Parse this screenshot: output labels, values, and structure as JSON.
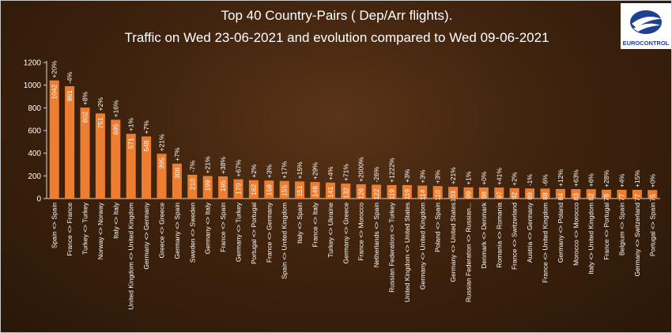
{
  "title_line1": "Top 40 Country-Pairs ( Dep/Arr flights).",
  "title_line2": "Traffic on Wed 23-06-2021 and evolution compared to Wed 09-06-2021",
  "logo": {
    "text": "EUROCONTROL",
    "icon": "eurocontrol-logo-icon"
  },
  "colors": {
    "bar": "#ed7d31",
    "text": "#ffffff",
    "axis": "#d9d9d9"
  },
  "chart_data": {
    "type": "bar",
    "ylim": [
      0,
      1200
    ],
    "yticks": [
      0,
      200,
      400,
      600,
      800,
      1000,
      1200
    ],
    "grid": false,
    "categories": [
      "Spain <> Spain",
      "France <> France",
      "Turkey <> Turkey",
      "Norway <> Norway",
      "Italy <> Italy",
      "United Kingdom <> United Kingdom",
      "Germany <> Germany",
      "Greece <> Greece",
      "Germany <> Spain",
      "Sweden <> Sweden",
      "Germany <> Italy",
      "France <> Spain",
      "Germany <> Turkey",
      "Portugal <> Portugal",
      "France <> Germany",
      "Spain <> United Kingdom",
      "Italy <> Spain",
      "France <> Italy",
      "Turkey <> Ukraine",
      "Germany <> Greece",
      "France <> Morocco",
      "Netherlands <> Spain",
      "Russian Federation <> Turkey",
      "United Kingdom <> United States",
      "Germany <> United Kingdom",
      "Poland <> Spain",
      "Germany <> United States",
      "Russian Federation <> Russian...",
      "Denmark <> Denmark",
      "Romania <> Romania",
      "France <> Switzerland",
      "Austria <> Germany",
      "France <> United Kingdom",
      "Germany <> Poland",
      "Morocco <> Morocco",
      "Italy <> United Kingdom",
      "France <> Portugal",
      "Belgium <> Spain",
      "Germany <> Switzerland",
      "Portugal <> Spain"
    ],
    "values": [
      1042,
      991,
      802,
      751,
      695,
      571,
      548,
      395,
      308,
      210,
      199,
      195,
      170,
      162,
      159,
      155,
      151,
      146,
      141,
      132,
      126,
      122,
      119,
      119,
      114,
      110,
      103,
      99,
      98,
      97,
      92,
      89,
      88,
      84,
      83,
      82,
      78,
      77,
      77,
      75
    ],
    "evolution_labels": [
      "+20%",
      "-4%",
      "+8%",
      "+2%",
      "+16%",
      "+1%",
      "+7%",
      "+21%",
      "+7%",
      "-7%",
      "+21%",
      "+38%",
      "+67%",
      "+2%",
      "+3%",
      "+17%",
      "+15%",
      "+29%",
      "+4%",
      "+71%",
      "+2000%",
      "-26%",
      "+1222%",
      "+3%",
      "+3%",
      "+3%",
      "+21%",
      "+1%",
      "+0%",
      "+41%",
      "+2%",
      "-1%",
      "-6%",
      "+12%",
      "+63%",
      "+6%",
      "+28%",
      "+4%",
      "+15%",
      "+0%"
    ]
  }
}
